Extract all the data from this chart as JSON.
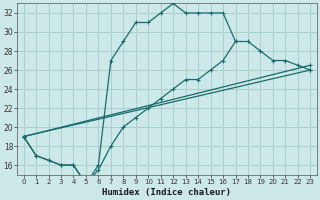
{
  "xlabel": "Humidex (Indice chaleur)",
  "bg_color": "#cde8e8",
  "grid_color": "#aacfcf",
  "line_color": "#1a6b6b",
  "xlim": [
    -0.5,
    23.5
  ],
  "ylim": [
    15,
    33
  ],
  "xticks": [
    0,
    1,
    2,
    3,
    4,
    5,
    6,
    7,
    8,
    9,
    10,
    11,
    12,
    13,
    14,
    15,
    16,
    17,
    18,
    19,
    20,
    21,
    22,
    23
  ],
  "yticks": [
    16,
    18,
    20,
    22,
    24,
    26,
    28,
    30,
    32
  ],
  "line1_x": [
    0,
    1,
    2,
    3,
    4,
    5,
    6,
    7,
    8,
    9,
    10,
    11,
    12,
    13,
    14,
    15,
    16,
    17,
    18,
    19,
    20,
    21,
    22,
    23
  ],
  "line1_y": [
    19,
    17,
    16.5,
    16,
    16,
    14,
    16,
    27,
    29,
    31,
    31,
    32,
    33,
    32,
    32,
    32,
    32,
    29,
    null,
    null,
    null,
    null,
    null,
    null
  ],
  "line2_x": [
    0,
    1,
    2,
    3,
    4,
    5,
    6,
    7,
    8,
    9,
    10,
    11,
    12,
    13,
    14,
    15,
    16,
    17,
    18,
    19,
    20,
    21,
    22,
    23
  ],
  "line2_y": [
    19,
    17,
    16.5,
    16,
    16,
    14,
    15.5,
    18,
    20,
    21,
    22,
    23,
    24,
    25,
    25,
    26,
    27,
    29,
    29,
    28,
    27,
    27,
    26.5,
    26
  ],
  "line3_x": [
    0,
    23
  ],
  "line3_y": [
    19,
    26
  ],
  "line4_x": [
    0,
    23
  ],
  "line4_y": [
    19,
    26.5
  ]
}
